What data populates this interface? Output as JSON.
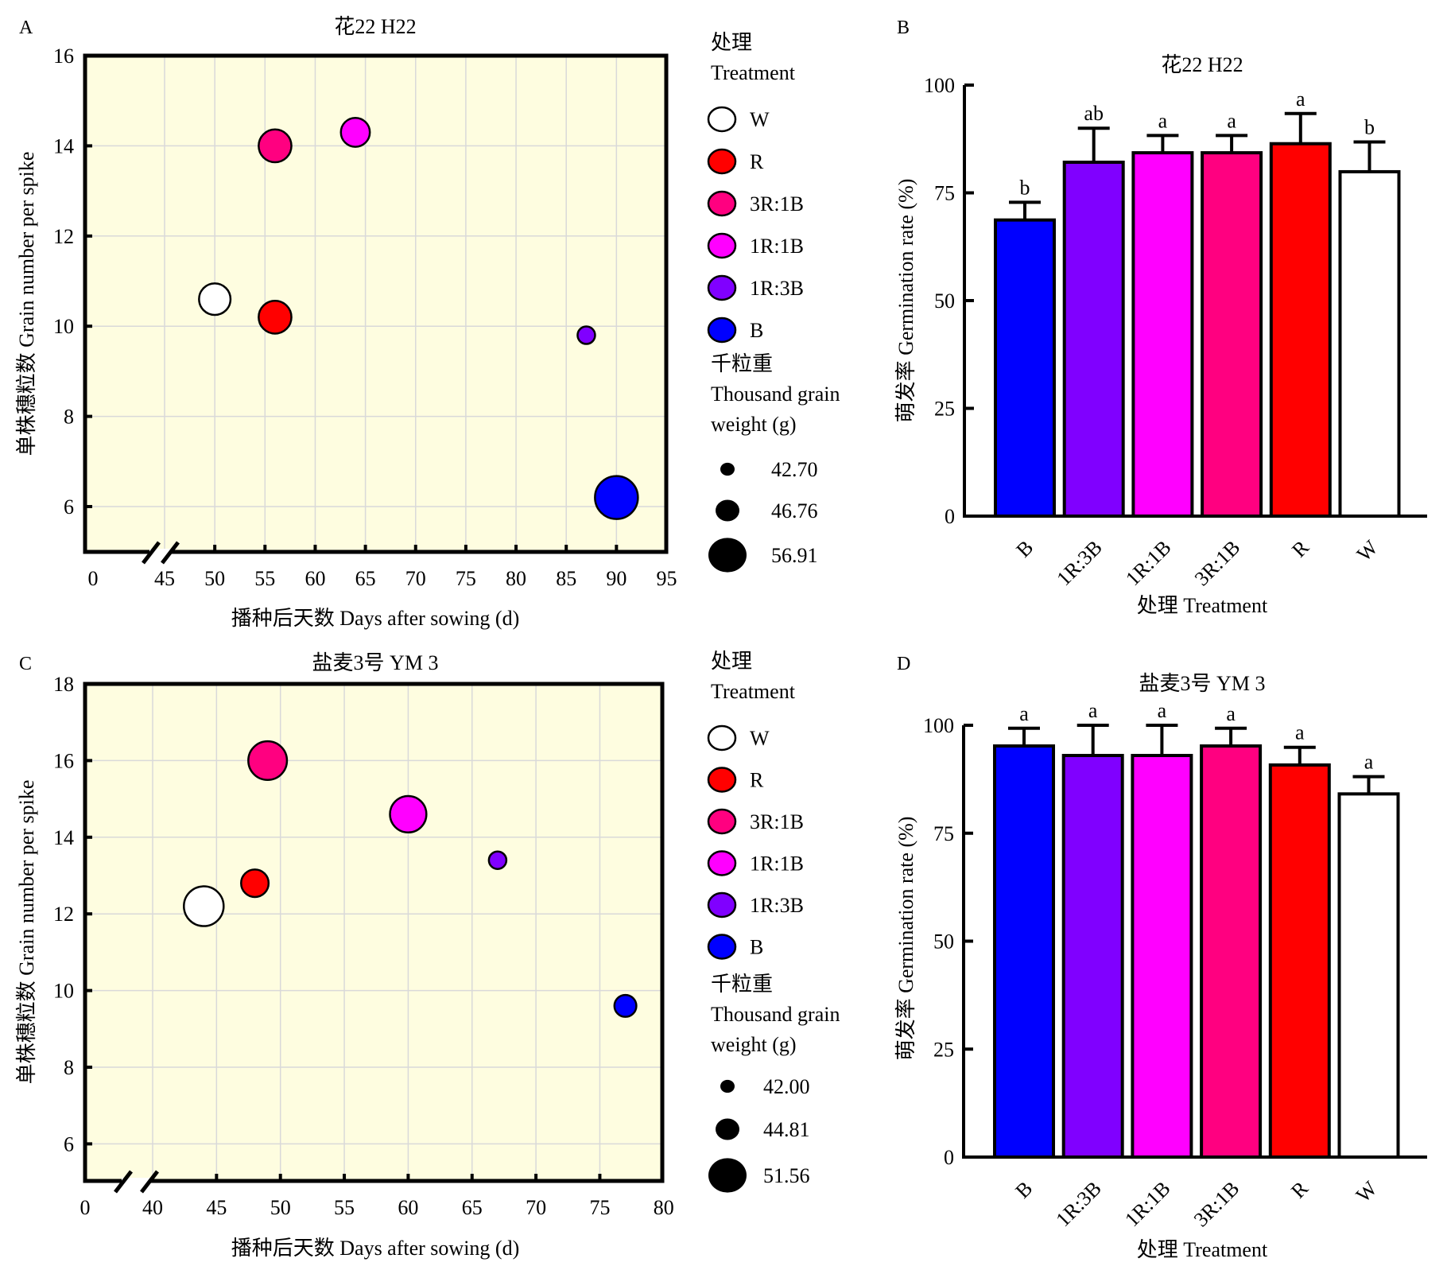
{
  "chart_data": [
    {
      "id": "A",
      "type": "scatter",
      "panel_label": "A",
      "title": "花22 H22",
      "xlabel": "播种后天数 Days after sowing (d)",
      "ylabel": "单株穗粒数 Grain number per spike",
      "x_ticks": [
        "0",
        "45",
        "50",
        "55",
        "60",
        "65",
        "70",
        "75",
        "80",
        "85",
        "90",
        "95"
      ],
      "x_tick_values": [
        0,
        45,
        50,
        55,
        60,
        65,
        70,
        75,
        80,
        85,
        90,
        95
      ],
      "x_axis_break": [
        0,
        45
      ],
      "xlim": [
        45,
        95
      ],
      "y_ticks": [
        "6",
        "8",
        "10",
        "12",
        "14",
        "16"
      ],
      "y_tick_values": [
        6,
        8,
        10,
        12,
        14,
        16
      ],
      "ylim": [
        5,
        16
      ],
      "grid": true,
      "background": "#fefde0",
      "points": [
        {
          "name": "W",
          "x": 50,
          "y": 10.6,
          "size_rank": 0.55,
          "color": "#ffffff"
        },
        {
          "name": "R",
          "x": 56,
          "y": 10.2,
          "size_rank": 0.6,
          "color": "#ff0000"
        },
        {
          "name": "3R:1B",
          "x": 56,
          "y": 14.0,
          "size_rank": 0.6,
          "color": "#ff0080"
        },
        {
          "name": "1R:1B",
          "x": 64,
          "y": 14.3,
          "size_rank": 0.45,
          "color": "#ff00ff"
        },
        {
          "name": "1R:3B",
          "x": 87,
          "y": 9.8,
          "size_rank": 0.0,
          "color": "#8000ff"
        },
        {
          "name": "B",
          "x": 90,
          "y": 6.2,
          "size_rank": 1.0,
          "color": "#0000ff"
        }
      ],
      "legend": {
        "title_cn": "处理",
        "title_en": "Treatment",
        "items": [
          "W",
          "R",
          "3R:1B",
          "1R:1B",
          "1R:3B",
          "B"
        ],
        "size_title_cn": "千粒重",
        "size_title_en_1": "Thousand grain",
        "size_title_en_2": "weight (g)",
        "size_values": [
          "42.70",
          "46.76",
          "56.91"
        ],
        "placement": "right"
      }
    },
    {
      "id": "B",
      "type": "bar",
      "panel_label": "B",
      "title": "花22 H22",
      "xlabel": "处理 Treatment",
      "ylabel": "萌发率 Germination rate (%)",
      "categories": [
        "B",
        "1R:3B",
        "1R:1B",
        "3R:1B",
        "R",
        "W"
      ],
      "values": [
        68.7,
        82.1,
        84.3,
        84.3,
        86.4,
        79.9
      ],
      "error_upper": [
        72.8,
        90.0,
        88.3,
        88.3,
        93.4,
        86.8
      ],
      "significance": [
        "b",
        "ab",
        "a",
        "a",
        "a",
        "b"
      ],
      "colors": [
        "#0000ff",
        "#8000ff",
        "#ff00ff",
        "#ff0080",
        "#ff0000",
        "#ffffff"
      ],
      "y_ticks": [
        "0",
        "25",
        "50",
        "75",
        "100"
      ],
      "y_tick_values": [
        0,
        25,
        50,
        75,
        100
      ],
      "ylim": [
        0,
        100
      ],
      "grid": false
    },
    {
      "id": "C",
      "type": "scatter",
      "panel_label": "C",
      "title": "盐麦3号 YM 3",
      "xlabel": "播种后天数 Days after sowing (d)",
      "ylabel": "单株穗粒数 Grain number per spike",
      "x_ticks": [
        "0",
        "40",
        "45",
        "50",
        "55",
        "60",
        "65",
        "70",
        "75",
        "80"
      ],
      "x_tick_values": [
        0,
        40,
        45,
        50,
        55,
        60,
        65,
        70,
        75,
        80
      ],
      "x_axis_break": [
        0,
        40
      ],
      "xlim": [
        40,
        80
      ],
      "y_ticks": [
        "6",
        "8",
        "10",
        "12",
        "14",
        "16",
        "18"
      ],
      "y_tick_values": [
        6,
        8,
        10,
        12,
        14,
        16,
        18
      ],
      "ylim": [
        5,
        18
      ],
      "grid": true,
      "background": "#fefde0",
      "points": [
        {
          "name": "W",
          "x": 44,
          "y": 12.2,
          "size_rank": 1.0,
          "color": "#ffffff"
        },
        {
          "name": "R",
          "x": 48,
          "y": 12.8,
          "size_rank": 0.45,
          "color": "#ff0000"
        },
        {
          "name": "3R:1B",
          "x": 49,
          "y": 16.0,
          "size_rank": 0.95,
          "color": "#ff0080"
        },
        {
          "name": "1R:1B",
          "x": 60,
          "y": 14.6,
          "size_rank": 0.85,
          "color": "#ff00ff"
        },
        {
          "name": "1R:3B",
          "x": 67,
          "y": 13.4,
          "size_rank": 0.0,
          "color": "#8000ff"
        },
        {
          "name": "B",
          "x": 77,
          "y": 9.6,
          "size_rank": 0.2,
          "color": "#0000ff"
        }
      ],
      "legend": {
        "title_cn": "处理",
        "title_en": "Treatment",
        "items": [
          "W",
          "R",
          "3R:1B",
          "1R:1B",
          "1R:3B",
          "B"
        ],
        "size_title_cn": "千粒重",
        "size_title_en_1": "Thousand grain",
        "size_title_en_2": "weight (g)",
        "size_values": [
          "42.00",
          "44.81",
          "51.56"
        ],
        "placement": "right"
      }
    },
    {
      "id": "D",
      "type": "bar",
      "panel_label": "D",
      "title": "盐麦3号 YM 3",
      "xlabel": "处理 Treatment",
      "ylabel": "萌发率 Germination rate (%)",
      "categories": [
        "B",
        "1R:3B",
        "1R:1B",
        "3R:1B",
        "R",
        "W"
      ],
      "values": [
        95.2,
        93.0,
        93.0,
        95.2,
        90.8,
        84.1
      ],
      "error_upper": [
        99.3,
        100.0,
        100.0,
        99.3,
        94.9,
        88.1
      ],
      "significance": [
        "a",
        "a",
        "a",
        "a",
        "a",
        "a"
      ],
      "colors": [
        "#0000ff",
        "#8000ff",
        "#ff00ff",
        "#ff0080",
        "#ff0000",
        "#ffffff"
      ],
      "y_ticks": [
        "0",
        "25",
        "50",
        "75",
        "100"
      ],
      "y_tick_values": [
        0,
        25,
        50,
        75,
        100
      ],
      "ylim": [
        0,
        100
      ],
      "grid": false
    }
  ],
  "legend_colors": {
    "W": "#ffffff",
    "R": "#ff0000",
    "3R:1B": "#ff0080",
    "1R:1B": "#ff00ff",
    "1R:3B": "#8000ff",
    "B": "#0000ff"
  }
}
